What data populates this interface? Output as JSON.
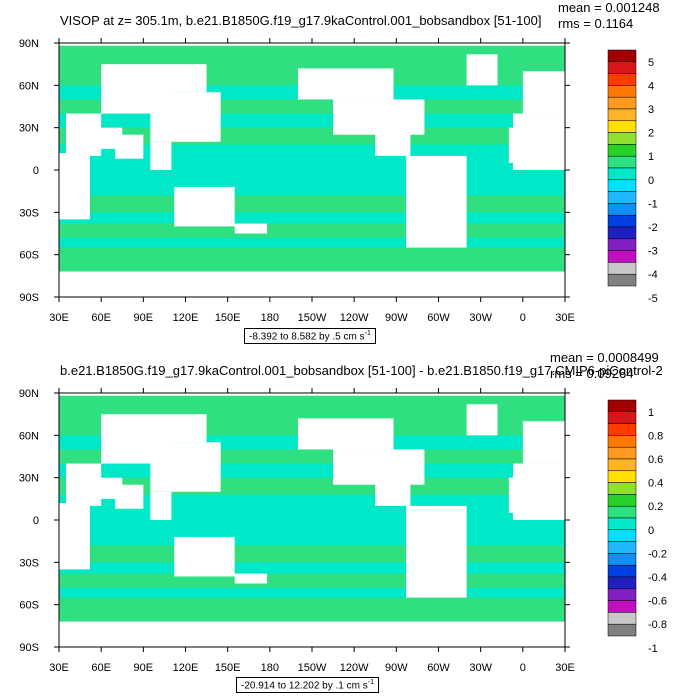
{
  "chart_data": [
    {
      "type": "heatmap",
      "title": "VISOP at z= 305.1m, b.e21.B1850G.f19_g17.9kaControl.001_bobsandbox [51-100]",
      "stats": {
        "mean": "mean = 0.001248",
        "rms": "rms = 0.1164"
      },
      "contour_range": {
        "text": "-8.392 to 8.582 by .5 cm s",
        "unit_exp": "-1"
      },
      "x_ticks": [
        "30E",
        "60E",
        "90E",
        "120E",
        "150E",
        "180",
        "150W",
        "120W",
        "90W",
        "60W",
        "30W",
        "0",
        "30E"
      ],
      "y_ticks": [
        "90N",
        "60N",
        "30N",
        "0",
        "30S",
        "60S",
        "90S"
      ],
      "xlim": [
        30,
        390
      ],
      "ylim": [
        -90,
        90
      ],
      "colorbar": {
        "labels": [
          "5",
          "4",
          "3",
          "2",
          "1",
          "0",
          "-1",
          "-2",
          "-3",
          "-4",
          "-5"
        ],
        "colors": [
          "#a00000",
          "#d81818",
          "#ff3c00",
          "#ff7800",
          "#ff9a20",
          "#ffb428",
          "#ffe000",
          "#90e030",
          "#28d028",
          "#30e080",
          "#00e8c8",
          "#00e0ff",
          "#20b8ff",
          "#1090f0",
          "#0040e0",
          "#2020c0",
          "#8020c0",
          "#c010c0",
          "#c8c8c8",
          "#808080"
        ]
      },
      "field_colors": {
        "ocean": "#00e8c8",
        "positive": "#30e080",
        "land": "#ffffff"
      }
    },
    {
      "type": "heatmap",
      "title": "b.e21.B1850G.f19_g17.9kaControl.001_bobsandbox [51-100] - b.e21.B1850.f19_g17.CMIP6-piControl-2",
      "stats": {
        "mean": "mean = 0.0008499",
        "rms": "rms = 0.09264"
      },
      "contour_range": {
        "text": "-20.914 to 12.202 by .1 cm s",
        "unit_exp": "-1"
      },
      "x_ticks": [
        "30E",
        "60E",
        "90E",
        "120E",
        "150E",
        "180",
        "150W",
        "120W",
        "90W",
        "60W",
        "30W",
        "0",
        "30E"
      ],
      "y_ticks": [
        "90N",
        "60N",
        "30N",
        "0",
        "30S",
        "60S",
        "90S"
      ],
      "xlim": [
        30,
        390
      ],
      "ylim": [
        -90,
        90
      ],
      "colorbar": {
        "labels": [
          "1",
          "0.8",
          "0.6",
          "0.4",
          "0.2",
          "0",
          "-0.2",
          "-0.4",
          "-0.6",
          "-0.8",
          "-1"
        ],
        "colors": [
          "#a00000",
          "#d81818",
          "#ff3c00",
          "#ff7800",
          "#ff9a20",
          "#ffb428",
          "#ffe000",
          "#90e030",
          "#28d028",
          "#30e080",
          "#00e8c8",
          "#00e0ff",
          "#20b8ff",
          "#1090f0",
          "#0040e0",
          "#2020c0",
          "#8020c0",
          "#c010c0",
          "#c8c8c8",
          "#808080"
        ]
      },
      "field_colors": {
        "ocean": "#00e8c8",
        "positive": "#30e080",
        "land": "#ffffff"
      }
    }
  ]
}
